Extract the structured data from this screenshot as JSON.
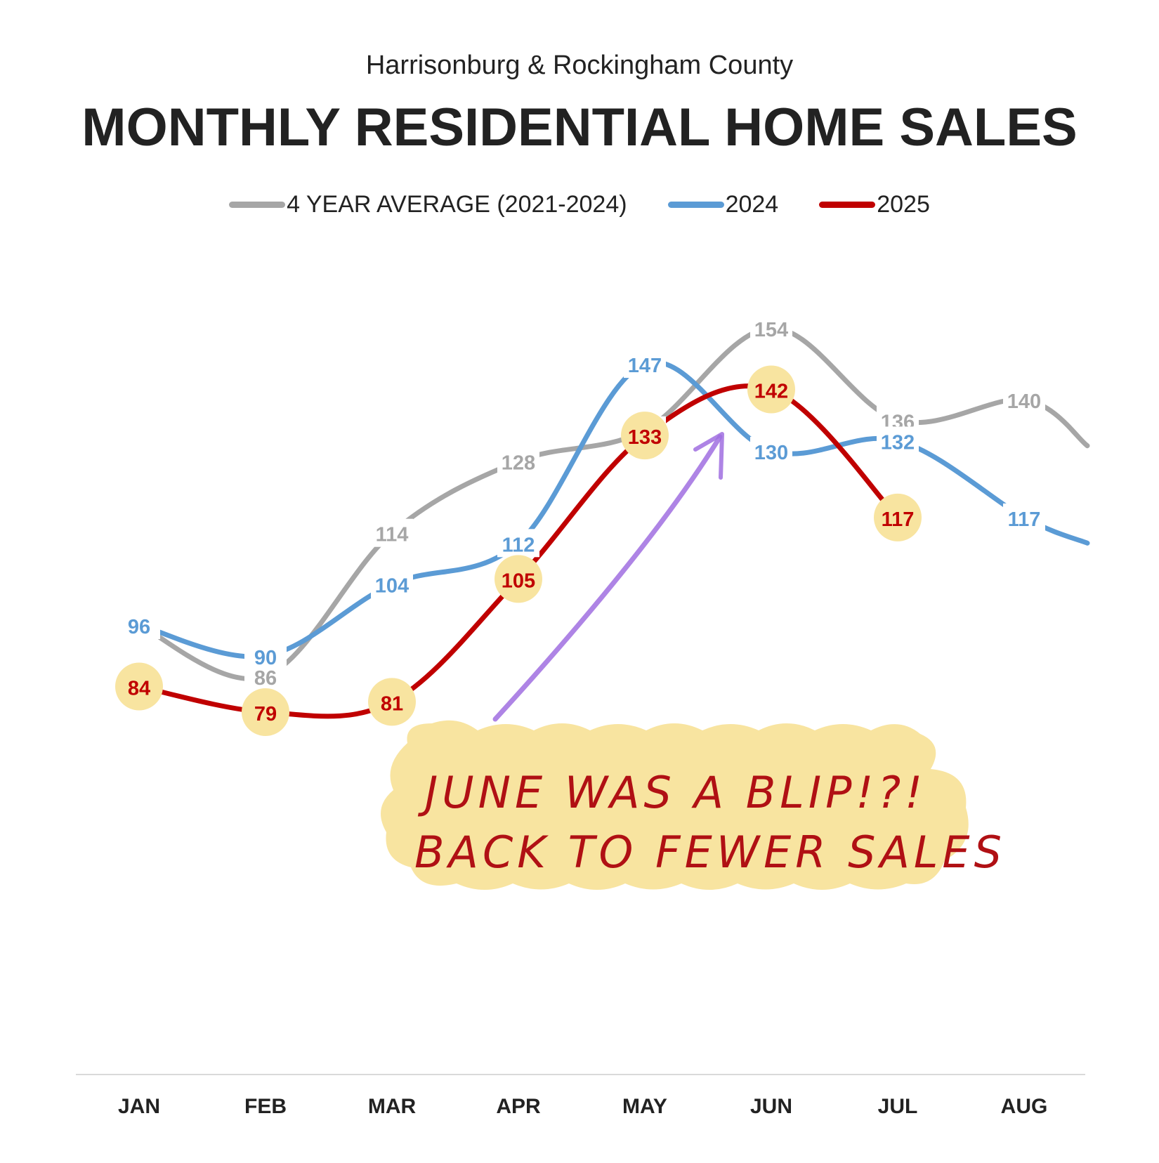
{
  "header": {
    "subtitle": "Harrisonburg & Rockingham County",
    "title": "MONTHLY RESIDENTIAL HOME SALES"
  },
  "colors": {
    "avg": "#a6a6a6",
    "y2024": "#5b9bd5",
    "y2025": "#c00000",
    "highlight": "#f8e4a0",
    "annotation_arrow": "#a06ee0",
    "axis": "#d9d9d9",
    "text": "#222222"
  },
  "annotation": {
    "line1": "JUNE WAS A BLIP!?!",
    "line2": "BACK TO FEWER SALES"
  },
  "chart_data": {
    "type": "line",
    "categories": [
      "JAN",
      "FEB",
      "MAR",
      "APR",
      "MAY",
      "JUN",
      "JUL",
      "AUG"
    ],
    "ylim": [
      20,
      170
    ],
    "grid": false,
    "legend_placement": "top-center",
    "series": [
      {
        "name": "4 YEAR AVERAGE (2021-2024)",
        "key": "avg",
        "values": [
          96,
          86,
          114,
          128,
          134,
          154,
          136,
          140
        ],
        "trailing": 131
      },
      {
        "name": "2024",
        "key": "y2024",
        "values": [
          96,
          90,
          104,
          112,
          147,
          130,
          132,
          117
        ],
        "trailing": 112
      },
      {
        "name": "2025",
        "key": "y2025",
        "values": [
          84,
          79,
          81,
          105,
          133,
          142,
          117,
          null
        ],
        "highlighted": true
      }
    ]
  }
}
